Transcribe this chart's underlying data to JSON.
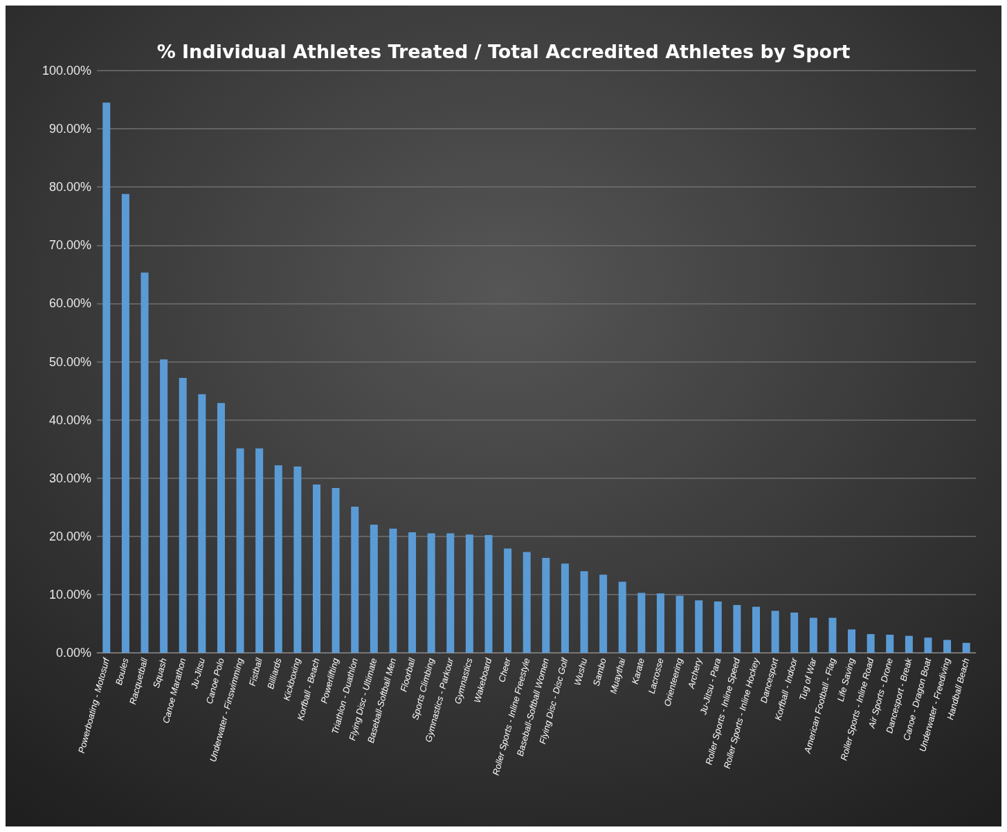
{
  "chart_data": {
    "type": "bar",
    "title": "% Individual Athletes Treated / Total Accredited Athletes by Sport",
    "categories": [
      "Powerboating - Motosurf",
      "Boules",
      "Racquetball",
      "Squash",
      "Canoe Marathon",
      "Ju-Jitsu",
      "Canoe Polo",
      "Underwater - Finswimming",
      "Fistball",
      "Billiards",
      "Kickboxing",
      "Korfball - Beach",
      "Powerlifting",
      "Triathlon - Duathlon",
      "Flying Disc - Ultimate",
      "Baseball-Softball Men",
      "Floorball",
      "Sports Climbing",
      "Gymnastics - Parkour",
      "Gymnastics",
      "Wakeboard",
      "Cheer",
      "Roller Sports - Inline Freestyle",
      "Baseball-Softball Women",
      "Flying Disc - Disc Golf",
      "Wushu",
      "Sambo",
      "Muaythai",
      "Karate",
      "Lacrosse",
      "Orienteering",
      "Archery",
      "Ju-Jitsu - Para",
      "Roller Sports - Inline Speed",
      "Roller Sports - Inline Hockey",
      "Dancesport",
      "Korfball - Indoor",
      "Tug of War",
      "American Football - Flag",
      "Life Saving",
      "Roller Sports - Inline Road",
      "Air Sports - Drone",
      "Dancesport - Break",
      "Canoe - Dragon Boat",
      "Underwater - Freediving",
      "Handball Beach"
    ],
    "values": [
      94.5,
      78.8,
      65.3,
      50.4,
      47.2,
      44.4,
      42.9,
      35.1,
      35.1,
      32.2,
      32.0,
      28.9,
      28.3,
      25.1,
      22.0,
      21.3,
      20.7,
      20.5,
      20.5,
      20.3,
      20.2,
      17.9,
      17.3,
      16.3,
      15.3,
      14.0,
      13.4,
      12.2,
      10.3,
      10.2,
      9.8,
      9.0,
      8.8,
      8.2,
      7.9,
      7.2,
      6.9,
      6.0,
      6.0,
      4.0,
      3.2,
      3.1,
      2.9,
      2.6,
      2.2,
      1.7
    ],
    "color": "#5b9bd5",
    "ylim": [
      0,
      100
    ],
    "yticks": [
      {
        "value": 0,
        "label": "0.00%"
      },
      {
        "value": 10,
        "label": "10.00%"
      },
      {
        "value": 20,
        "label": "20.00%"
      },
      {
        "value": 30,
        "label": "30.00%"
      },
      {
        "value": 40,
        "label": "40.00%"
      },
      {
        "value": 50,
        "label": "50.00%"
      },
      {
        "value": 60,
        "label": "60.00%"
      },
      {
        "value": 70,
        "label": "70.00%"
      },
      {
        "value": 80,
        "label": "80.00%"
      },
      {
        "value": 90,
        "label": "90.00%"
      },
      {
        "value": 100,
        "label": "100.00%"
      }
    ],
    "grid": "y"
  }
}
